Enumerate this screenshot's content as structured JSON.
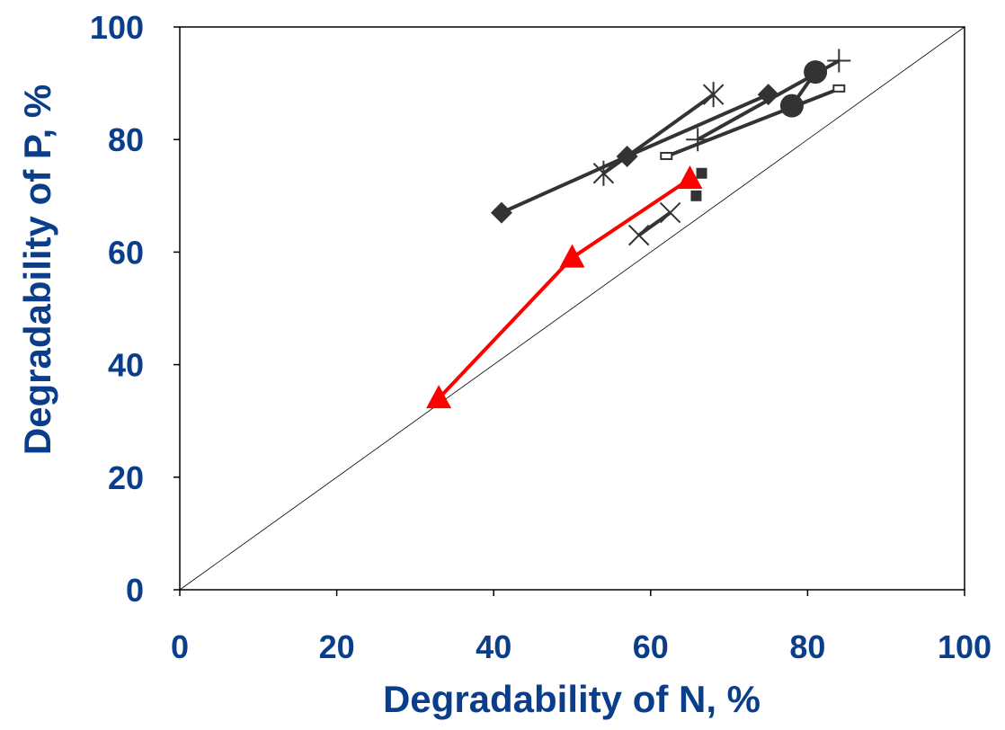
{
  "chart_data": {
    "type": "scatter",
    "title": "",
    "xlabel": "Degradability of N, %",
    "ylabel": "Degradability of P, %",
    "xlim": [
      0,
      100
    ],
    "ylim": [
      0,
      100
    ],
    "xticks": [
      0,
      20,
      40,
      60,
      80,
      100
    ],
    "yticks": [
      0,
      20,
      40,
      60,
      80,
      100
    ],
    "grid": false,
    "legend": "none",
    "reference_line": {
      "x": [
        0,
        100
      ],
      "y": [
        0,
        100
      ],
      "style": "thin black 1:1 line"
    },
    "colors": {
      "axis_text": "#0b3e8a",
      "series_dark": "#333333",
      "series_red": "#ff0000"
    },
    "series": [
      {
        "marker": "diamond",
        "color": "#333333",
        "connected": true,
        "points": [
          [
            41,
            67
          ],
          [
            57,
            77
          ],
          [
            75,
            88
          ]
        ]
      },
      {
        "marker": "asterisk",
        "color": "#333333",
        "connected": true,
        "points": [
          [
            54,
            74
          ],
          [
            68,
            88
          ]
        ]
      },
      {
        "marker": "circle",
        "color": "#333333",
        "connected": true,
        "points": [
          [
            78,
            86
          ],
          [
            81,
            92
          ]
        ]
      },
      {
        "marker": "plus",
        "color": "#333333",
        "connected": true,
        "points": [
          [
            66,
            80
          ],
          [
            84,
            94
          ]
        ]
      },
      {
        "marker": "open-rectangle",
        "color": "#333333",
        "connected": true,
        "points": [
          [
            62,
            77
          ],
          [
            84,
            89
          ]
        ]
      },
      {
        "marker": "square",
        "color": "#333333",
        "connected": false,
        "points": [
          [
            66.5,
            74
          ],
          [
            65.8,
            70
          ]
        ]
      },
      {
        "marker": "x",
        "color": "#333333",
        "connected": true,
        "points": [
          [
            58.5,
            63
          ],
          [
            62.5,
            67
          ]
        ]
      },
      {
        "marker": "triangle",
        "color": "#ff0000",
        "connected": true,
        "points": [
          [
            33,
            34
          ],
          [
            50,
            59
          ],
          [
            65,
            73
          ]
        ]
      }
    ]
  }
}
